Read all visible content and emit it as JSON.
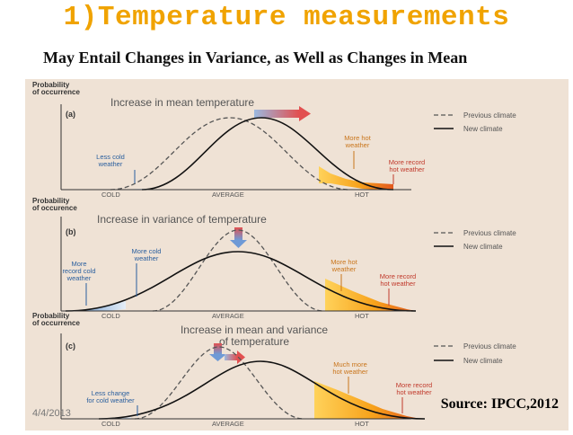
{
  "slide": {
    "title": "1)Temperature measurements",
    "subtitle": "May Entail Changes in Variance, as Well as Changes in Mean",
    "source": "Source: IPCC,2012",
    "date": "4/4/2013"
  },
  "figure": {
    "y_axis_label": [
      "Probability",
      "of occurrence"
    ],
    "y_axis_label_alt": [
      "Probability",
      "of occurence"
    ],
    "x_ticks": [
      "COLD",
      "AVERAGE",
      "HOT"
    ],
    "legend": {
      "previous": "Previous climate",
      "new": "New climate"
    },
    "panels": [
      {
        "letter": "(a)",
        "heading": [
          "Increase in mean temperature"
        ],
        "annotations": {
          "cold": [
            "Less cold",
            "weather"
          ],
          "hot": [
            "More hot",
            "weather"
          ],
          "record": [
            "More record",
            "hot weather"
          ]
        }
      },
      {
        "letter": "(b)",
        "heading": [
          "Increase in variance of temperature"
        ],
        "annotations": {
          "cold": [
            "More cold",
            "weather"
          ],
          "record_cold": [
            "More",
            "record cold",
            "weather"
          ],
          "hot": [
            "More hot",
            "weather"
          ],
          "record": [
            "More record",
            "hot weather"
          ]
        }
      },
      {
        "letter": "(c)",
        "heading": [
          "Increase in mean and variance",
          "of temperature"
        ],
        "annotations": {
          "cold": [
            "Less change",
            "for cold weather"
          ],
          "hot": [
            "Much more",
            "hot weather"
          ],
          "record": [
            "More record",
            "hot weather"
          ]
        }
      }
    ]
  }
}
